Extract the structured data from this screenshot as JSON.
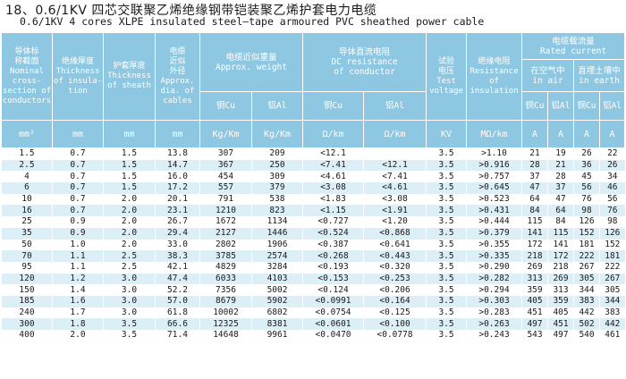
{
  "title_cn": "18、0.6/1KV  四芯交联聚乙烯绝缘钢带铠装聚乙烯护套电力电缆",
  "title_en": "0.6/1KV 4 cores XLPE insulated steel—tape armoured PVC sheathed power cable",
  "headers": {
    "nominal": [
      "导体标",
      "称截面",
      "Nominal",
      "cross-",
      "section of",
      "conductors"
    ],
    "insul": [
      "绝缘厚度",
      "Thickness",
      "of insula-",
      "tion"
    ],
    "sheath": [
      "护套厚度",
      "Thickness",
      "of sheath"
    ],
    "dia": [
      "电缆",
      "近似",
      "外径",
      "Approx.",
      "dia. of",
      "cables"
    ],
    "weight": [
      "电缆近似重量",
      "Approx. weight"
    ],
    "resistance": [
      "导体直流电阻",
      "DC resistance",
      "of conductor"
    ],
    "voltage": [
      "试验",
      "电压",
      "Test",
      "voltage"
    ],
    "ins_res": [
      "绝缘电阻",
      "Resistance",
      "of",
      "insulation"
    ],
    "current": [
      "电缆载流量",
      "Rated current"
    ],
    "air": [
      "在空气中",
      "in air"
    ],
    "earth": [
      "直埋土壤中",
      "in earth"
    ],
    "cu": "铜Cu",
    "al": "铝Al"
  },
  "units": [
    "mm²",
    "mm",
    "mm",
    "mm",
    "Kg/Km",
    "Kg/Km",
    "Ω/km",
    "Ω/km",
    "KV",
    "MΩ/km",
    "A",
    "A",
    "A",
    "A"
  ],
  "rows": [
    [
      "1.5",
      "0.7",
      "1.5",
      "13.8",
      "307",
      "209",
      "<12.1",
      "",
      "3.5",
      ">1.10",
      "21",
      "19",
      "26",
      "22"
    ],
    [
      "2.5",
      "0.7",
      "1.5",
      "14.7",
      "367",
      "250",
      "<7.41",
      "<12.1",
      "3.5",
      ">0.916",
      "28",
      "21",
      "36",
      "26"
    ],
    [
      "4",
      "0.7",
      "1.5",
      "16.0",
      "454",
      "309",
      "<4.61",
      "<7.41",
      "3.5",
      ">0.757",
      "37",
      "28",
      "45",
      "34"
    ],
    [
      "6",
      "0.7",
      "1.5",
      "17.2",
      "557",
      "379",
      "<3.08",
      "<4.61",
      "3.5",
      ">0.645",
      "47",
      "37",
      "56",
      "46"
    ],
    [
      "10",
      "0.7",
      "2.0",
      "20.1",
      "791",
      "538",
      "<1.83",
      "<3.08",
      "3.5",
      ">0.523",
      "64",
      "47",
      "76",
      "56"
    ],
    [
      "16",
      "0.7",
      "2.0",
      "23.1",
      "1210",
      "823",
      "<1.15",
      "<1.91",
      "3.5",
      ">0.431",
      "84",
      "64",
      "98",
      "76"
    ],
    [
      "25",
      "0.9",
      "2.0",
      "26.7",
      "1672",
      "1134",
      "<0.727",
      "<1.20",
      "3.5",
      ">0.444",
      "115",
      "84",
      "126",
      "98"
    ],
    [
      "35",
      "0.9",
      "2.0",
      "29.4",
      "2127",
      "1446",
      "<0.524",
      "<0.868",
      "3.5",
      ">0.379",
      "141",
      "115",
      "152",
      "126"
    ],
    [
      "50",
      "1.0",
      "2.0",
      "33.0",
      "2802",
      "1906",
      "<0.387",
      "<0.641",
      "3.5",
      ">0.355",
      "172",
      "141",
      "181",
      "152"
    ],
    [
      "70",
      "1.1",
      "2.5",
      "38.3",
      "3785",
      "2574",
      "<0.268",
      "<0.443",
      "3.5",
      ">0.335",
      "218",
      "172",
      "222",
      "181"
    ],
    [
      "95",
      "1.1",
      "2.5",
      "42.1",
      "4829",
      "3284",
      "<0.193",
      "<0.320",
      "3.5",
      ">0.290",
      "269",
      "218",
      "267",
      "222"
    ],
    [
      "120",
      "1.2",
      "3.0",
      "47.4",
      "6033",
      "4103",
      "<0.153",
      "<0.253",
      "3.5",
      ">0.282",
      "313",
      "269",
      "305",
      "267"
    ],
    [
      "150",
      "1.4",
      "3.0",
      "52.2",
      "7356",
      "5002",
      "<0.124",
      "<0.206",
      "3.5",
      ">0.294",
      "359",
      "313",
      "344",
      "305"
    ],
    [
      "185",
      "1.6",
      "3.0",
      "57.0",
      "8679",
      "5902",
      "<0.0991",
      "<0.164",
      "3.5",
      ">0.303",
      "405",
      "359",
      "383",
      "344"
    ],
    [
      "240",
      "1.7",
      "3.0",
      "61.8",
      "10002",
      "6802",
      "<0.0754",
      "<0.125",
      "3.5",
      ">0.283",
      "451",
      "405",
      "442",
      "383"
    ],
    [
      "300",
      "1.8",
      "3.5",
      "66.6",
      "12325",
      "8381",
      "<0.0601",
      "<0.100",
      "3.5",
      ">0.263",
      "497",
      "451",
      "502",
      "442"
    ],
    [
      "400",
      "2.0",
      "3.5",
      "71.4",
      "14648",
      "9961",
      "<0.0470",
      "<0.0778",
      "3.5",
      ">0.243",
      "543",
      "497",
      "540",
      "461"
    ]
  ]
}
